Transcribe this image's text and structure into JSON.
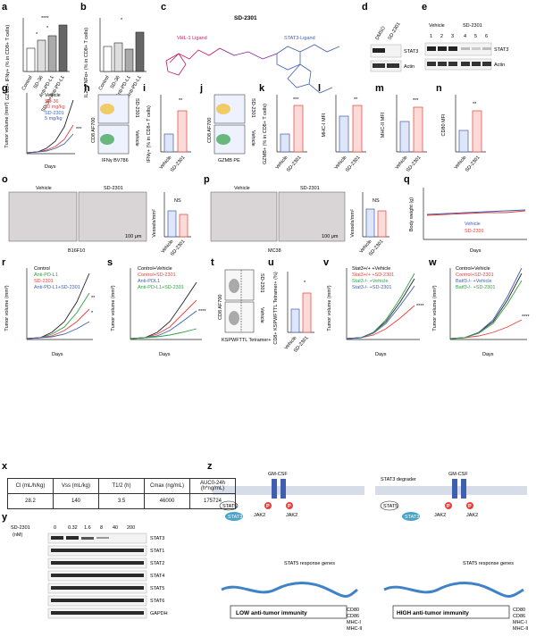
{
  "panels": {
    "a": {
      "label": "a",
      "ylabel": "GZMB+ IFNγ+ (% in CD8+ T cells)",
      "groups": [
        "Control",
        "SD-36",
        "Anti-PD-L1",
        "SD-36+Anti-PD-L1"
      ],
      "sig": [
        "*",
        "*",
        "****"
      ]
    },
    "b": {
      "label": "b",
      "ylabel": "IL2+ TNFα+ (% in CD8+ T cells)",
      "groups": [
        "Control",
        "SD-36",
        "Anti-PD-L1",
        "SD-36+Anti-PD-L1"
      ],
      "sig": [
        "*"
      ]
    },
    "c": {
      "label": "c",
      "title": "SD-2301",
      "ligand_left": "VHL-1 Ligand",
      "ligand_right": "STAT3-Ligand"
    },
    "d": {
      "label": "d",
      "lanes": [
        "DMSO",
        "SD-2301"
      ],
      "bands": [
        "STAT3",
        "Actin"
      ]
    },
    "e": {
      "label": "e",
      "groups": [
        "Vehicle",
        "SD-2301"
      ],
      "lanes": [
        "1",
        "2",
        "3",
        "4",
        "5",
        "6"
      ],
      "bands": [
        "STAT3",
        "Actin"
      ]
    },
    "f": {
      "label": "f",
      "lanes": [
        "DMSO",
        "SD-2301 20 nM",
        "SD-36 150 nM"
      ],
      "bands": [
        "STAT3",
        "Actin"
      ]
    },
    "g": {
      "label": "g",
      "ylabel": "Tumor volume (mm³)",
      "xlabel": "Days",
      "legend": [
        "Vehicle",
        "SD-36",
        "20 mg/kg",
        "SD-2301",
        "5 mg/kg"
      ],
      "sig": "***"
    },
    "h": {
      "label": "h",
      "ylabel": "CD8 AF700",
      "xlabel": "IFNγ BV786",
      "rows": [
        "SD-2301",
        "Vehicle"
      ]
    },
    "i": {
      "label": "i",
      "ylabel": "IFNγ+ (% in CD8+ T cells)",
      "groups": [
        "Vehicle",
        "SD-2301"
      ],
      "sig": "**"
    },
    "j": {
      "label": "j",
      "ylabel": "CD8 AF700",
      "xlabel": "GZMB PE",
      "rows": [
        "SD-2301",
        "Vehicle"
      ]
    },
    "k": {
      "label": "k",
      "ylabel": "GZMB+ (% in CD8+ T cells)",
      "groups": [
        "Vehicle",
        "SD-2301"
      ],
      "sig": "***"
    },
    "l": {
      "label": "l",
      "ylabel": "MHC-I MFI",
      "groups": [
        "Vehicle",
        "SD-2301"
      ],
      "sig": "**"
    },
    "m": {
      "label": "m",
      "ylabel": "MHC-II MFI",
      "groups": [
        "Vehicle",
        "SD-2301"
      ],
      "sig": "***"
    },
    "n": {
      "label": "n",
      "ylabel": "CD80 MFI",
      "groups": [
        "Vehicle",
        "SD-2301"
      ],
      "sig": "**"
    },
    "o": {
      "label": "o",
      "imgs": [
        "Vehicle",
        "SD-2301"
      ],
      "scale": "100 μm",
      "model": "B16F10",
      "ylabel": "Vessels/mm²",
      "groups": [
        "Vehicle",
        "SD-2301"
      ],
      "sig": "NS"
    },
    "p": {
      "label": "p",
      "imgs": [
        "Vehicle",
        "SD-2301"
      ],
      "scale": "100 μm",
      "model": "MC38",
      "ylabel": "Vessels/mm²",
      "groups": [
        "Vehicle",
        "SD-2301"
      ],
      "sig": "NS"
    },
    "q": {
      "label": "q",
      "ylabel": "Body weight (g)",
      "xlabel": "Days",
      "legend": [
        "Vehicle",
        "SD-2301"
      ]
    },
    "r": {
      "label": "r",
      "ylabel": "Tumor volume (mm³)",
      "xlabel": "Days",
      "legend": [
        "Control",
        "Anti-PD-L1",
        "SD-2301",
        "Anti-PD-L1+SD-2301"
      ],
      "sig": [
        "**",
        "*"
      ]
    },
    "s": {
      "label": "s",
      "ylabel": "Tumor volume (mm³)",
      "xlabel": "Days",
      "legend": [
        "Control+Vehicle",
        "Control+SD-2301",
        "Anti-PDL1",
        "Anti-PD-L1+SD-2301"
      ],
      "sig": "****"
    },
    "t": {
      "label": "t",
      "ylabel": "CD8 AF700",
      "xlabel": "KSPWFTTL Tetramer+",
      "rows": [
        "SD-2301",
        "Vehicle"
      ]
    },
    "u": {
      "label": "u",
      "ylabel": "CD8+ KSPWFTTL Tetramer+ (%)",
      "groups": [
        "Vehicle",
        "SD-2301"
      ],
      "sig": "*"
    },
    "v": {
      "label": "v",
      "ylabel": "Tumor volume (mm³)",
      "xlabel": "Days",
      "legend": [
        "Stat3+/+ +Vehicle",
        "Stat3+/+ +SD-2301",
        "Stat3-/- +Vehicle",
        "Stat3-/- +SD-2301"
      ],
      "sig": "****"
    },
    "w": {
      "label": "w",
      "ylabel": "Tumor volume (mm³)",
      "xlabel": "Days",
      "legend": [
        "Control+Vehicle",
        "Control+SD-2301",
        "Batf3-/- +Vehicle",
        "Batf3-/- +SD-2301"
      ],
      "sig": "****"
    },
    "x": {
      "label": "x",
      "headers": [
        "Cl (mL/h/kg)",
        "Vss (mL/kg)",
        "T1/2 (h)",
        "Cmax (ng/mL)",
        "AUC0-24h (h*ng/mL)"
      ],
      "values": [
        "28.2",
        "140",
        "3.5",
        "46000",
        "175724"
      ]
    },
    "y": {
      "label": "y",
      "drug": "SD-2301",
      "unit": "(nM)",
      "doses": [
        "0",
        "0.32",
        "1.6",
        "8",
        "40",
        "200"
      ],
      "bands": [
        "STAT3",
        "STAT1",
        "STAT2",
        "STAT4",
        "STAT5",
        "STAT6",
        "GAPDH"
      ]
    },
    "z": {
      "label": "z",
      "cytokine": "GM-CSF",
      "jak": "JAK2",
      "stat3": "STAT3",
      "stat5": "STAT5",
      "degrader": "STAT3 degrader",
      "p": "P",
      "left_genes": "STAT5 response genes",
      "right_genes": "STAT5 response genes",
      "left_box": "LOW anti-tumor immunity",
      "right_box": "HIGH anti-tumor immunity",
      "markers": [
        "CD80",
        "CD86",
        "MHC-I",
        "MHC-II"
      ]
    }
  },
  "ticks": {
    "tv2000": [
      "0",
      "500",
      "1,000",
      "1,500",
      "2,000"
    ],
    "days18": [
      "0",
      "6",
      "9",
      "12",
      "15",
      "18"
    ],
    "days24": [
      "0",
      "6",
      "9",
      "12",
      "15",
      "18",
      "21",
      "24"
    ],
    "bw": [
      "0",
      "10",
      "20",
      "30",
      "40"
    ],
    "pct100": [
      "0",
      "25",
      "50",
      "75",
      "100"
    ],
    "mfi4000": [
      "0",
      "1,000",
      "2,000",
      "3,000",
      "4,000"
    ],
    "mfi9000": [
      "0",
      "30,000",
      "60,000",
      "90,000"
    ],
    "cd80": [
      "0",
      "200",
      "400",
      "600",
      "800"
    ],
    "pct_a": [
      "0",
      "5",
      "10",
      "15",
      "20"
    ],
    "pct_b": [
      "0",
      "1",
      "2",
      "3",
      "4"
    ],
    "vessel": [
      "0",
      "10",
      "20",
      "30"
    ],
    "tet": [
      "0",
      "5",
      "10",
      "15"
    ],
    "lane_a": [
      "1",
      "2",
      "3"
    ],
    "lane_b": [
      "4",
      "5",
      "6"
    ]
  },
  "colors": {
    "red": "#e8403a",
    "blue": "#3f5fb0",
    "black": "#222222",
    "green": "#2ea043",
    "grey": "#8a8a8a",
    "purple": "#b23fa3",
    "bar_red": "#f5c2bf"
  }
}
